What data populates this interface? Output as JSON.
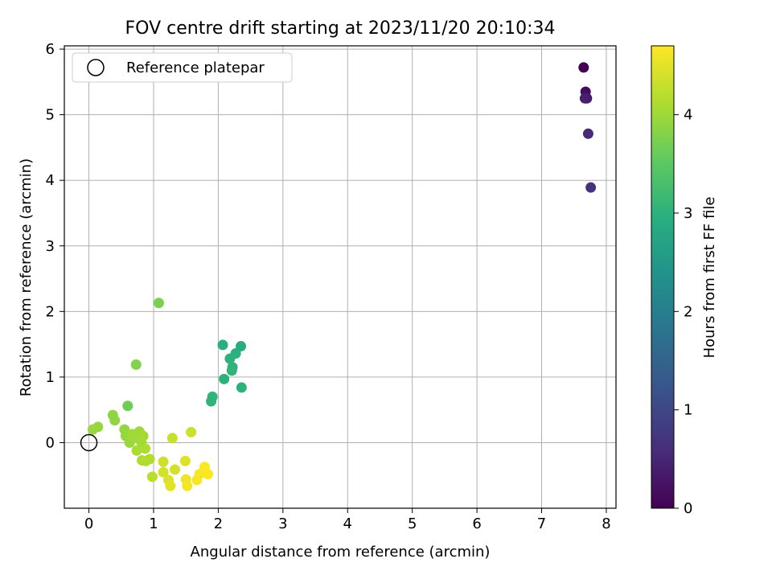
{
  "chart_data": {
    "type": "scatter",
    "title": "FOV centre drift starting at 2023/11/20 20:10:34",
    "xlabel": "Angular distance from reference (arcmin)",
    "ylabel": "Rotation from reference (arcmin)",
    "xlim": [
      -0.38,
      8.15
    ],
    "ylim": [
      -1.0,
      6.05
    ],
    "xticks": [
      0,
      1,
      2,
      3,
      4,
      5,
      6,
      7,
      8
    ],
    "yticks": [
      0,
      1,
      2,
      3,
      4,
      5,
      6
    ],
    "grid": true,
    "legend": {
      "placement": "top-left",
      "entries": [
        "Reference platepar"
      ]
    },
    "reference_point": {
      "x": 0,
      "y": 0
    },
    "colorbar": {
      "label": "Hours from first FF file",
      "range": [
        0,
        4.7
      ],
      "ticks": [
        0,
        1,
        2,
        3,
        4
      ],
      "colormap": "viridis"
    },
    "series": [
      {
        "points": [
          {
            "x": 7.65,
            "y": 5.72,
            "h": 0.0
          },
          {
            "x": 7.68,
            "y": 5.35,
            "h": 0.15
          },
          {
            "x": 7.7,
            "y": 5.25,
            "h": 0.3
          },
          {
            "x": 7.67,
            "y": 5.25,
            "h": 0.4
          },
          {
            "x": 7.72,
            "y": 4.71,
            "h": 0.55
          },
          {
            "x": 7.76,
            "y": 3.89,
            "h": 0.65
          },
          {
            "x": 2.07,
            "y": 1.49,
            "h": 2.95
          },
          {
            "x": 2.35,
            "y": 1.47,
            "h": 2.9
          },
          {
            "x": 2.27,
            "y": 1.36,
            "h": 2.98
          },
          {
            "x": 2.18,
            "y": 1.28,
            "h": 3.0
          },
          {
            "x": 2.22,
            "y": 1.15,
            "h": 3.02
          },
          {
            "x": 2.21,
            "y": 1.1,
            "h": 3.05
          },
          {
            "x": 2.09,
            "y": 0.97,
            "h": 3.0
          },
          {
            "x": 2.36,
            "y": 0.84,
            "h": 3.0
          },
          {
            "x": 1.91,
            "y": 0.7,
            "h": 3.05
          },
          {
            "x": 1.89,
            "y": 0.63,
            "h": 3.05
          },
          {
            "x": 1.08,
            "y": 2.13,
            "h": 3.75
          },
          {
            "x": 0.73,
            "y": 1.19,
            "h": 3.8
          },
          {
            "x": 0.6,
            "y": 0.56,
            "h": 3.65
          },
          {
            "x": 0.14,
            "y": 0.24,
            "h": 3.95
          },
          {
            "x": 0.06,
            "y": 0.2,
            "h": 3.97
          },
          {
            "x": 0.4,
            "y": 0.34,
            "h": 3.9
          },
          {
            "x": 0.37,
            "y": 0.42,
            "h": 3.88
          },
          {
            "x": 0.55,
            "y": 0.2,
            "h": 3.92
          },
          {
            "x": 0.57,
            "y": 0.1,
            "h": 3.95
          },
          {
            "x": 0.63,
            "y": 0.0,
            "h": 3.97
          },
          {
            "x": 0.7,
            "y": 0.08,
            "h": 4.0
          },
          {
            "x": 0.78,
            "y": 0.17,
            "h": 4.0
          },
          {
            "x": 0.84,
            "y": 0.1,
            "h": 4.05
          },
          {
            "x": 0.81,
            "y": 0.01,
            "h": 4.05
          },
          {
            "x": 0.67,
            "y": 0.13,
            "h": 4.02
          },
          {
            "x": 0.74,
            "y": -0.12,
            "h": 4.08
          },
          {
            "x": 0.87,
            "y": -0.09,
            "h": 4.1
          },
          {
            "x": 0.82,
            "y": -0.27,
            "h": 4.12
          },
          {
            "x": 0.88,
            "y": -0.28,
            "h": 4.15
          },
          {
            "x": 0.94,
            "y": -0.25,
            "h": 4.15
          },
          {
            "x": 0.98,
            "y": -0.52,
            "h": 4.2
          },
          {
            "x": 1.29,
            "y": 0.07,
            "h": 4.3
          },
          {
            "x": 1.15,
            "y": -0.29,
            "h": 4.35
          },
          {
            "x": 1.15,
            "y": -0.45,
            "h": 4.4
          },
          {
            "x": 1.33,
            "y": -0.41,
            "h": 4.4
          },
          {
            "x": 1.23,
            "y": -0.57,
            "h": 4.45
          },
          {
            "x": 1.26,
            "y": -0.66,
            "h": 4.5
          },
          {
            "x": 1.49,
            "y": -0.28,
            "h": 4.45
          },
          {
            "x": 1.58,
            "y": 0.16,
            "h": 4.35
          },
          {
            "x": 1.5,
            "y": -0.56,
            "h": 4.6
          },
          {
            "x": 1.52,
            "y": -0.66,
            "h": 4.62
          },
          {
            "x": 1.67,
            "y": -0.57,
            "h": 4.65
          },
          {
            "x": 1.71,
            "y": -0.48,
            "h": 4.65
          },
          {
            "x": 1.79,
            "y": -0.37,
            "h": 4.68
          },
          {
            "x": 1.84,
            "y": -0.48,
            "h": 4.7
          }
        ]
      }
    ]
  }
}
